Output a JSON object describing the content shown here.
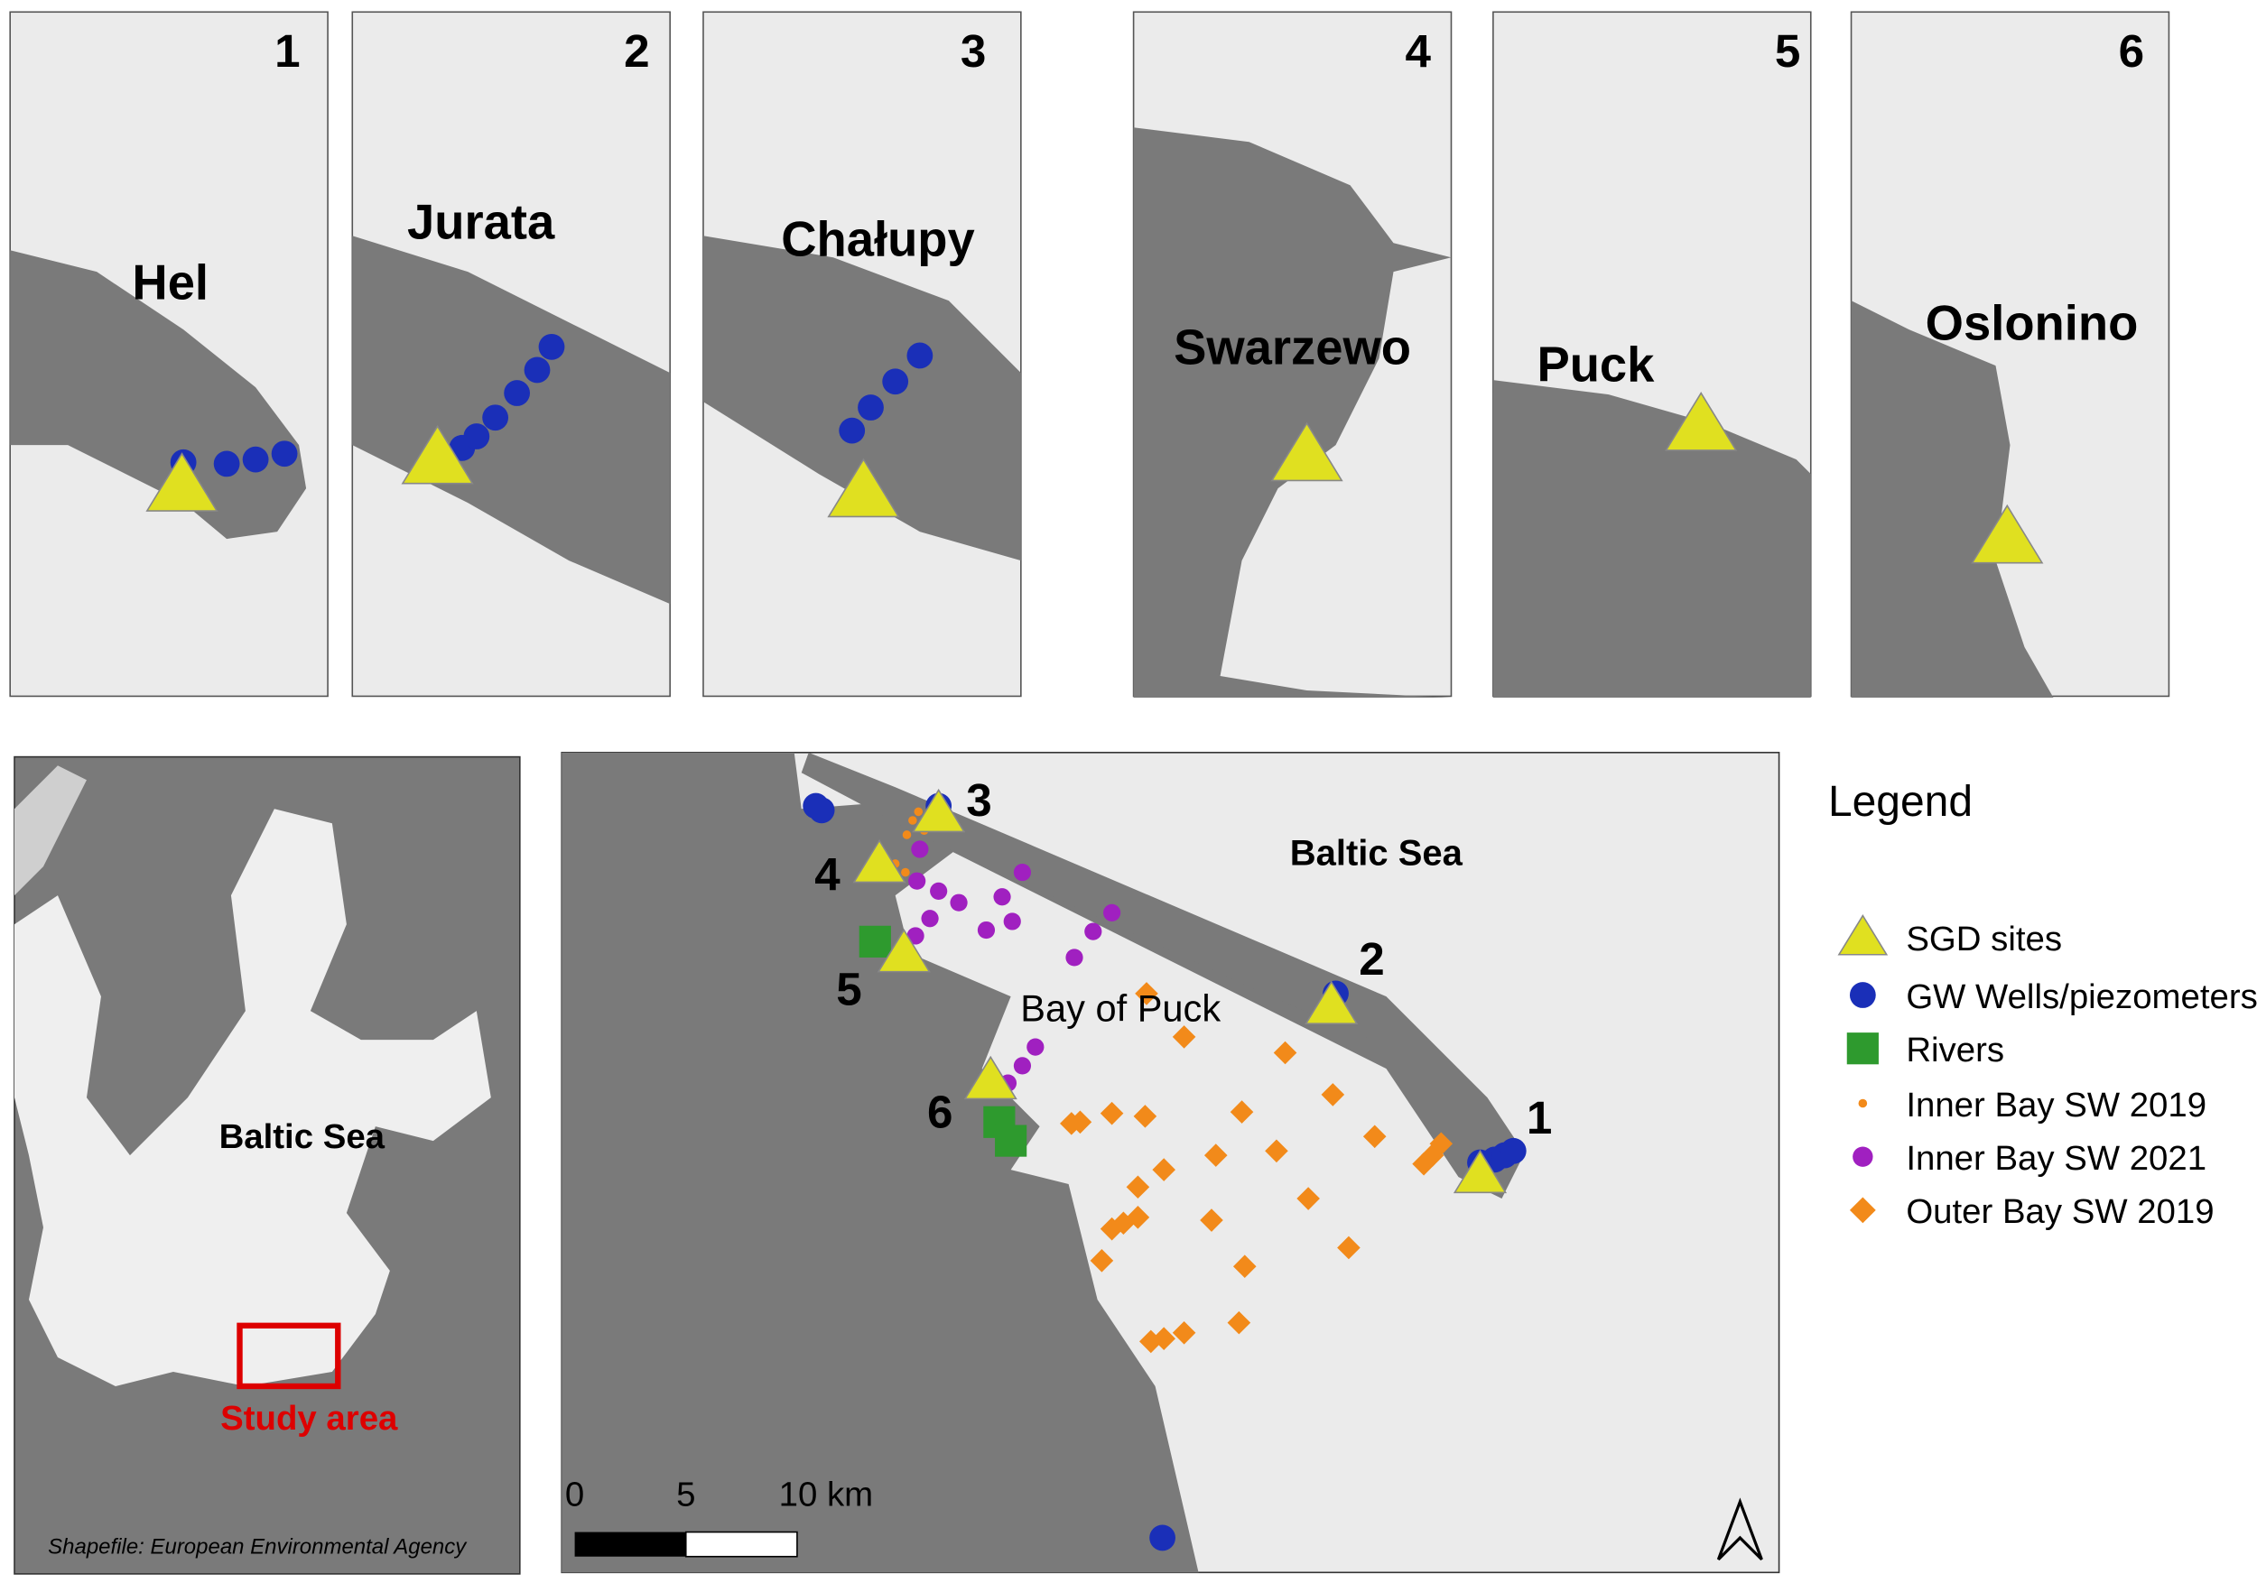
{
  "insets": [
    {
      "number": "1",
      "label": "Hel"
    },
    {
      "number": "2",
      "label": "Jurata"
    },
    {
      "number": "3",
      "label": "Chałupy"
    },
    {
      "number": "4",
      "label": "Swarzewo"
    },
    {
      "number": "5",
      "label": "Puck"
    },
    {
      "number": "6",
      "label": "Oslonino"
    }
  ],
  "overview": {
    "label": "Baltic Sea",
    "study_area": "Study area",
    "credit": "Shapefile: European Environmental Agency"
  },
  "main_map": {
    "sea_label": "Baltic Sea",
    "bay_label": "Bay of Puck",
    "sites": [
      "1",
      "2",
      "3",
      "4",
      "5",
      "6"
    ],
    "scale": [
      "0",
      "5",
      "10 km"
    ]
  },
  "legend": {
    "title": "Legend",
    "items": [
      "SGD sites",
      "GW Wells/piezometers",
      "Rivers",
      "Inner Bay SW 2019",
      "Inner Bay SW 2021",
      "Outer Bay SW 2019"
    ]
  }
}
